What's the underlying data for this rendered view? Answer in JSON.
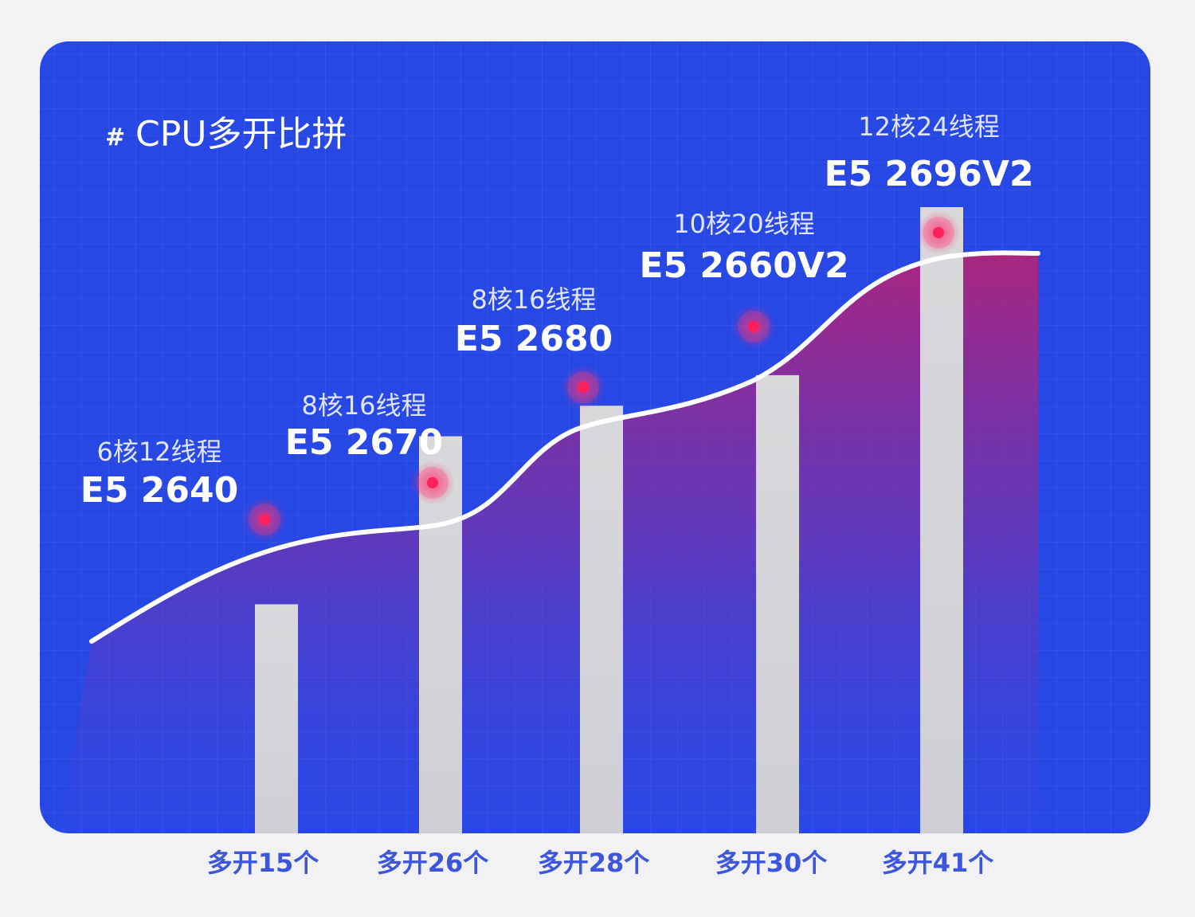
{
  "chart_data": {
    "type": "bar",
    "title": "CPU多开比拼",
    "title_prefix": "#",
    "categories": [
      "多开15个",
      "多开26个",
      "多开28个",
      "多开30个",
      "多开41个"
    ],
    "values": [
      15,
      26,
      28,
      30,
      41
    ],
    "ylim": [
      0,
      53
    ],
    "processors": [
      {
        "spec": "6核12线程",
        "model": "E5 2640"
      },
      {
        "spec": "8核16线程",
        "model": "E5 2670"
      },
      {
        "spec": "8核16线程",
        "model": "E5 2680"
      },
      {
        "spec": "10核20线程",
        "model": "E5 2660V2"
      },
      {
        "spec": "12核24线程",
        "model": "E5 2696V2"
      }
    ],
    "grid": true,
    "legend": "none"
  },
  "colors": {
    "panel": "#2848e6",
    "bar": "#d6d6d9",
    "curve": "#ffffff",
    "marker": "#ff1f5a",
    "category_text": "#3c56dd",
    "area_top": "#b0247a"
  }
}
